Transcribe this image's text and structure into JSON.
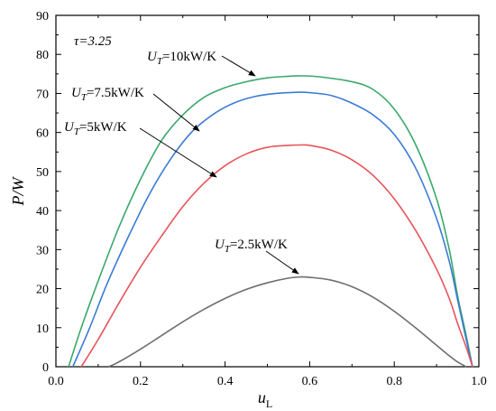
{
  "chart_data": {
    "type": "line",
    "xlabel": "u",
    "xlabel_sub": "L",
    "ylabel": "P/W",
    "xlim": [
      0.0,
      1.0
    ],
    "ylim": [
      0,
      90
    ],
    "xticks": [
      0.0,
      0.2,
      0.4,
      0.6,
      0.8,
      1.0
    ],
    "xtick_labels": [
      "0.0",
      "0.2",
      "0.4",
      "0.6",
      "0.8",
      "1.0"
    ],
    "yticks": [
      0,
      10,
      20,
      30,
      40,
      50,
      60,
      70,
      80,
      90
    ],
    "ytick_labels": [
      "0",
      "10",
      "20",
      "30",
      "40",
      "50",
      "60",
      "70",
      "80",
      "90"
    ],
    "grid": false,
    "annotation_tau": "τ=3.25",
    "series": [
      {
        "label_main": "U",
        "label_sub": "T",
        "label_rest": "=10kW/K",
        "color": "#3aa86b",
        "x": [
          0.03,
          0.06,
          0.1,
          0.15,
          0.2,
          0.25,
          0.3,
          0.35,
          0.4,
          0.45,
          0.5,
          0.55,
          0.58,
          0.62,
          0.7,
          0.75,
          0.8,
          0.85,
          0.9,
          0.93,
          0.95,
          0.97,
          0.985
        ],
        "y": [
          0,
          10,
          22,
          36,
          48,
          58,
          64.5,
          69,
          71.5,
          73,
          74,
          74.4,
          74.5,
          74.3,
          73,
          71,
          66,
          57,
          43,
          30,
          18,
          8,
          0
        ]
      },
      {
        "label_main": "U",
        "label_sub": "T",
        "label_rest": "=7.5kW/K",
        "color": "#3a7bd5",
        "x": [
          0.04,
          0.08,
          0.12,
          0.17,
          0.22,
          0.27,
          0.32,
          0.37,
          0.42,
          0.47,
          0.52,
          0.57,
          0.6,
          0.65,
          0.7,
          0.75,
          0.8,
          0.85,
          0.9,
          0.93,
          0.95,
          0.97,
          0.985
        ],
        "y": [
          0,
          10,
          21,
          33,
          44,
          53,
          60,
          64.5,
          67.5,
          69.2,
          70,
          70.3,
          70.2,
          69.5,
          67.5,
          64.5,
          59.5,
          51,
          38,
          27,
          17,
          7,
          0
        ]
      },
      {
        "label_main": "U",
        "label_sub": "T",
        "label_rest": "=5kW/K",
        "color": "#e8545a",
        "x": [
          0.06,
          0.1,
          0.15,
          0.2,
          0.25,
          0.3,
          0.35,
          0.4,
          0.45,
          0.5,
          0.55,
          0.58,
          0.6,
          0.65,
          0.7,
          0.75,
          0.8,
          0.85,
          0.9,
          0.93,
          0.95,
          0.97,
          0.985
        ],
        "y": [
          0,
          7,
          16.5,
          25.5,
          33.5,
          41,
          47,
          51.5,
          54.5,
          56.2,
          56.7,
          56.8,
          56.7,
          55.5,
          53,
          49,
          43,
          35,
          25,
          17.5,
          11,
          5,
          0
        ]
      },
      {
        "label_main": "U",
        "label_sub": "T",
        "label_rest": "=2.5kW/K",
        "color": "#6e6e6e",
        "x": [
          0.125,
          0.15,
          0.2,
          0.25,
          0.3,
          0.35,
          0.4,
          0.45,
          0.5,
          0.55,
          0.58,
          0.6,
          0.65,
          0.7,
          0.75,
          0.8,
          0.85,
          0.9,
          0.93,
          0.95,
          0.97
        ],
        "y": [
          0,
          1.3,
          4.5,
          8,
          11.5,
          14.7,
          17.5,
          19.8,
          21.5,
          22.7,
          23,
          22.9,
          22.2,
          20.5,
          17.8,
          14.2,
          10,
          5.5,
          2.8,
          1.2,
          0
        ]
      }
    ]
  }
}
